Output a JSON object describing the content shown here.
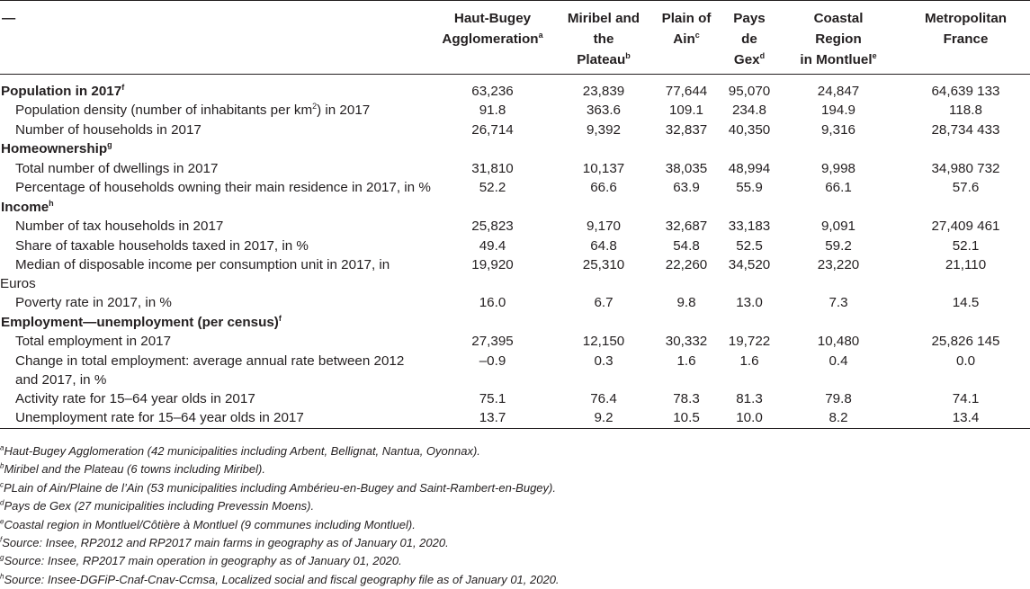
{
  "header": {
    "corner": "—",
    "columns": [
      {
        "name": "Haut-Bugey Agglomeration",
        "line1": "Haut-Bugey",
        "line2": "Agglomeration",
        "line3": "",
        "sup": "a"
      },
      {
        "name": "Miribel and the Plateau",
        "line1": "Miribel and",
        "line2": "the",
        "line3": "Plateau",
        "sup": "b"
      },
      {
        "name": "Plain of Ain",
        "line1": "Plain of",
        "line2": "Ain",
        "line3": "",
        "sup": "c"
      },
      {
        "name": "Pays de Gex",
        "line1": "Pays",
        "line2": "de",
        "line3": "Gex",
        "sup": "d"
      },
      {
        "name": "Coastal Region in Montluel",
        "line1": "Coastal",
        "line2": "Region",
        "line3": "in Montluel",
        "sup": "e"
      },
      {
        "name": "Metropolitan France",
        "line1": "Metropolitan",
        "line2": "France",
        "line3": "",
        "sup": ""
      }
    ]
  },
  "sections": [
    {
      "title": "Population in 2017",
      "sup": "f",
      "values": [
        "63,236",
        "23,839",
        "77,644",
        "95,070",
        "24,847",
        "64,639 133"
      ],
      "rows": [
        {
          "label_a": "Population density (number of inhabitants per km",
          "label_sup": "2",
          "label_b": ") in 2017",
          "values": [
            "91.8",
            "363.6",
            "109.1",
            "234.8",
            "194.9",
            "118.8"
          ]
        },
        {
          "label_a": "Number of households in 2017",
          "label_sup": "",
          "label_b": "",
          "values": [
            "26,714",
            "9,392",
            "32,837",
            "40,350",
            "9,316",
            "28,734 433"
          ]
        }
      ]
    },
    {
      "title": "Homeownership",
      "sup": "g",
      "values": [
        "",
        "",
        "",
        "",
        "",
        ""
      ],
      "rows": [
        {
          "label_a": "Total number of dwellings in 2017",
          "label_sup": "",
          "label_b": "",
          "values": [
            "31,810",
            "10,137",
            "38,035",
            "48,994",
            "9,998",
            "34,980 732"
          ]
        },
        {
          "label_a": "Percentage of households owning their main residence in 2017, in %",
          "label_sup": "",
          "label_b": "",
          "values": [
            "52.2",
            "66.6",
            "63.9",
            "55.9",
            "66.1",
            "57.6"
          ]
        }
      ]
    },
    {
      "title": "Income",
      "sup": "h",
      "values": [
        "",
        "",
        "",
        "",
        "",
        ""
      ],
      "rows": [
        {
          "label_a": "Number of tax households in 2017",
          "label_sup": "",
          "label_b": "",
          "values": [
            "25,823",
            "9,170",
            "32,687",
            "33,183",
            "9,091",
            "27,409 461"
          ]
        },
        {
          "label_a": "Share of taxable households taxed in 2017, in %",
          "label_sup": "",
          "label_b": "",
          "values": [
            "49.4",
            "64.8",
            "54.8",
            "52.5",
            "59.2",
            "52.1"
          ]
        },
        {
          "label_a": "Median of disposable income per consumption unit in 2017, in",
          "label_sup": "",
          "label_b": "",
          "label_cont": "Euros",
          "values": [
            "19,920",
            "25,310",
            "22,260",
            "34,520",
            "23,220",
            "21,110"
          ]
        },
        {
          "label_a": "Poverty rate in 2017, in %",
          "label_sup": "",
          "label_b": "",
          "values": [
            "16.0",
            "6.7",
            "9.8",
            "13.0",
            "7.3",
            "14.5"
          ]
        }
      ]
    },
    {
      "title": "Employment—unemployment (per census)",
      "sup": "f",
      "values": [
        "",
        "",
        "",
        "",
        "",
        ""
      ],
      "rows": [
        {
          "label_a": "Total employment in 2017",
          "label_sup": "",
          "label_b": "",
          "values": [
            "27,395",
            "12,150",
            "30,332",
            "19,722",
            "10,480",
            "25,826 145"
          ]
        },
        {
          "label_a": "Change in total employment: average annual rate between 2012",
          "label_sup": "",
          "label_b": "",
          "label_cont": "and 2017, in %",
          "values": [
            "–0.9",
            "0.3",
            "1.6",
            "1.6",
            "0.4",
            "0.0"
          ]
        },
        {
          "label_a": "Activity rate for 15–64 year olds in 2017",
          "label_sup": "",
          "label_b": "",
          "values": [
            "75.1",
            "76.4",
            "78.3",
            "81.3",
            "79.8",
            "74.1"
          ]
        },
        {
          "label_a": "Unemployment rate for 15–64 year olds in 2017",
          "label_sup": "",
          "label_b": "",
          "values": [
            "13.7",
            "9.2",
            "10.5",
            "10.0",
            "8.2",
            "13.4"
          ]
        }
      ]
    }
  ],
  "footnotes": [
    {
      "mark": "a",
      "text": "Haut-Bugey Agglomeration (42 municipalities including Arbent, Bellignat, Nantua, Oyonnax)."
    },
    {
      "mark": "b",
      "text": "Miribel and the Plateau (6 towns including Miribel)."
    },
    {
      "mark": "c",
      "text": "PLain of Ain/Plaine de l’Ain (53 municipalities including Ambérieu-en-Bugey and Saint-Rambert-en-Bugey)."
    },
    {
      "mark": "d",
      "text": "Pays de Gex (27 municipalities including Prevessin Moens)."
    },
    {
      "mark": "e",
      "text": "Coastal region in Montluel/Côtière à Montluel (9 communes including Montluel)."
    },
    {
      "mark": "f",
      "text": "Source: Insee, RP2012 and RP2017 main farms in geography as of January 01, 2020."
    },
    {
      "mark": "g",
      "text": "Source: Insee, RP2017 main operation in geography as of January 01, 2020."
    },
    {
      "mark": "h",
      "text": "Source: Insee-DGFiP-Cnaf-Cnav-Ccmsa, Localized social and fiscal geography file as of January 01, 2020."
    }
  ]
}
